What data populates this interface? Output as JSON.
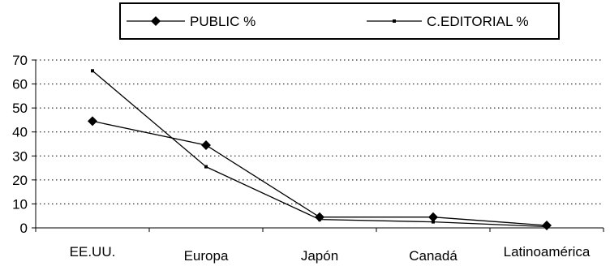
{
  "chart_data": {
    "type": "line",
    "title": "",
    "xlabel": "",
    "ylabel": "",
    "categories": [
      "EE.UU.",
      "Europa",
      "Japón",
      "Canadá",
      "Latinoamérica"
    ],
    "ylim": [
      0,
      70
    ],
    "yticks": [
      0,
      10,
      20,
      30,
      40,
      50,
      60,
      70
    ],
    "grid": true,
    "legend_position": "top",
    "series": [
      {
        "name": "PUBLIC %",
        "marker": "diamond",
        "values": [
          44.5,
          34.5,
          4.5,
          4.5,
          1
        ]
      },
      {
        "name": "C.EDITORIAL %",
        "marker": "square",
        "values": [
          65.5,
          25.5,
          3.5,
          2.5,
          0.5
        ]
      }
    ],
    "colors": {
      "line": "#000000",
      "grid": "#000000",
      "background": "#ffffff"
    }
  }
}
